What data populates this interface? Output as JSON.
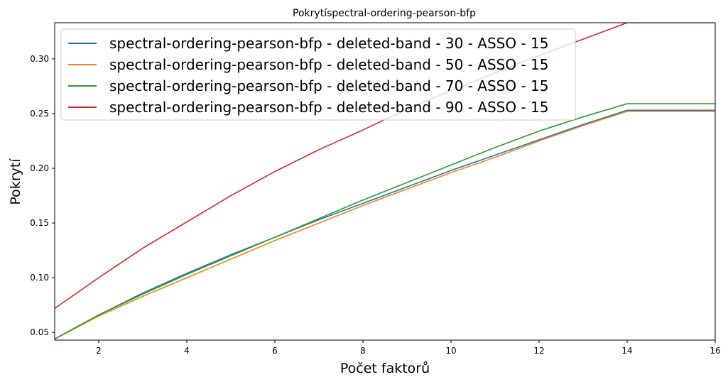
{
  "chart_data": {
    "type": "line",
    "title": "Pokrytíspectral-ordering-pearson-bfp",
    "xlabel": "Počet faktorů",
    "ylabel": "Pokrytí",
    "xlim": [
      1,
      16
    ],
    "ylim": [
      0.043,
      0.333
    ],
    "xticks": [
      2,
      4,
      6,
      8,
      10,
      12,
      14,
      16
    ],
    "yticks": [
      0.05,
      0.1,
      0.15,
      0.2,
      0.25,
      0.3
    ],
    "ytick_labels": [
      "0.05",
      "0.10",
      "0.15",
      "0.20",
      "0.25",
      "0.30"
    ],
    "grid": false,
    "legend_position": "top-left",
    "x": [
      1,
      2,
      3,
      4,
      5,
      6,
      7,
      8,
      9,
      10,
      11,
      12,
      13,
      14,
      15,
      16
    ],
    "series": [
      {
        "name": "spectral-ordering-pearson-bfp - deleted-band - 30 - ASSO - 15",
        "color": "#1f77b4",
        "values": [
          0.044,
          0.066,
          0.086,
          0.104,
          0.121,
          0.137,
          0.153,
          0.168,
          0.183,
          0.198,
          0.212,
          0.226,
          0.24,
          0.253,
          0.253,
          0.253
        ]
      },
      {
        "name": "spectral-ordering-pearson-bfp - deleted-band - 50 - ASSO - 15",
        "color": "#ff7f0e",
        "values": [
          0.044,
          0.065,
          0.083,
          0.1,
          0.117,
          0.134,
          0.15,
          0.166,
          0.181,
          0.196,
          0.21,
          0.225,
          0.239,
          0.252,
          0.252,
          0.252
        ]
      },
      {
        "name": "spectral-ordering-pearson-bfp - deleted-band - 70 - ASSO - 15",
        "color": "#2ca02c",
        "values": [
          0.044,
          0.066,
          0.085,
          0.103,
          0.12,
          0.137,
          0.154,
          0.171,
          0.187,
          0.203,
          0.219,
          0.234,
          0.247,
          0.259,
          0.259,
          0.259
        ]
      },
      {
        "name": "spectral-ordering-pearson-bfp - deleted-band - 90 - ASSO - 15",
        "color": "#d62728",
        "values": [
          0.072,
          0.1,
          0.127,
          0.151,
          0.175,
          0.197,
          0.217,
          0.235,
          0.254,
          0.271,
          0.287,
          0.303,
          0.318,
          0.333,
          0.333,
          0.333
        ]
      }
    ]
  }
}
